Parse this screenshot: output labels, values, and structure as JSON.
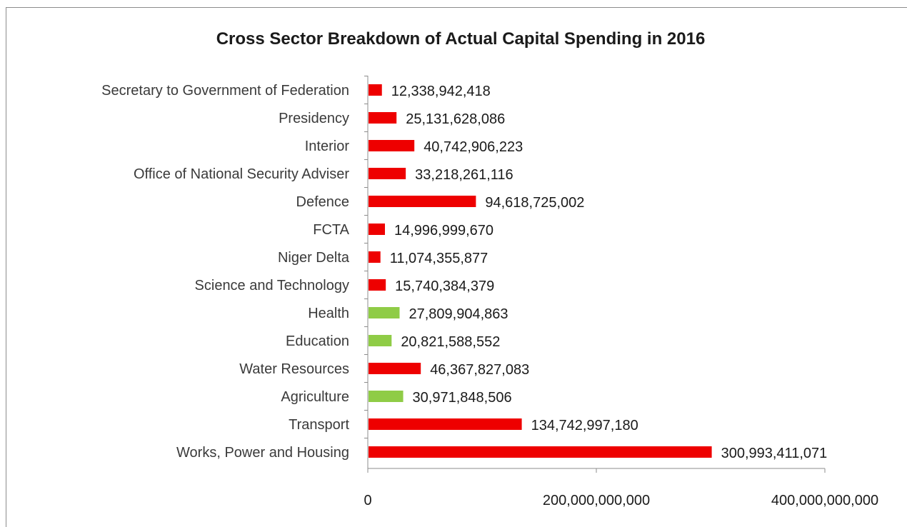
{
  "chart_data": {
    "type": "bar",
    "orientation": "horizontal",
    "title": "Cross Sector Breakdown of Actual Capital Spending in 2016",
    "xlabel": "",
    "ylabel": "",
    "xlim": [
      0,
      400000000000
    ],
    "x_ticks": [
      {
        "value": 0,
        "label": "0"
      },
      {
        "value": 200000000000,
        "label": "200,000,000,000"
      },
      {
        "value": 400000000000,
        "label": "400,000,000,000"
      }
    ],
    "grid": false,
    "legend": "none",
    "colors": {
      "red": "#ee0000",
      "green": "#8fcc46"
    },
    "bars": [
      {
        "category": "Secretary to Government of Federation",
        "value": 12338942418,
        "label": "12,338,942,418",
        "color": "red"
      },
      {
        "category": "Presidency",
        "value": 25131628086,
        "label": "25,131,628,086",
        "color": "red"
      },
      {
        "category": "Interior",
        "value": 40742906223,
        "label": "40,742,906,223",
        "color": "red"
      },
      {
        "category": "Office of National Security Adviser",
        "value": 33218261116,
        "label": "33,218,261,116",
        "color": "red"
      },
      {
        "category": "Defence",
        "value": 94618725002,
        "label": "94,618,725,002",
        "color": "red"
      },
      {
        "category": "FCTA",
        "value": 14996999670,
        "label": "14,996,999,670",
        "color": "red"
      },
      {
        "category": "Niger Delta",
        "value": 11074355877,
        "label": "11,074,355,877",
        "color": "red"
      },
      {
        "category": "Science and Technology",
        "value": 15740384379,
        "label": "15,740,384,379",
        "color": "red"
      },
      {
        "category": "Health",
        "value": 27809904863,
        "label": "27,809,904,863",
        "color": "green"
      },
      {
        "category": "Education",
        "value": 20821588552,
        "label": "20,821,588,552",
        "color": "green"
      },
      {
        "category": "Water Resources",
        "value": 46367827083,
        "label": "46,367,827,083",
        "color": "red"
      },
      {
        "category": "Agriculture",
        "value": 30971848506,
        "label": "30,971,848,506",
        "color": "green"
      },
      {
        "category": "Transport",
        "value": 134742997180,
        "label": "134,742,997,180",
        "color": "red"
      },
      {
        "category": "Works, Power and Housing",
        "value": 300993411071,
        "label": "300,993,411,071",
        "color": "red"
      }
    ]
  }
}
